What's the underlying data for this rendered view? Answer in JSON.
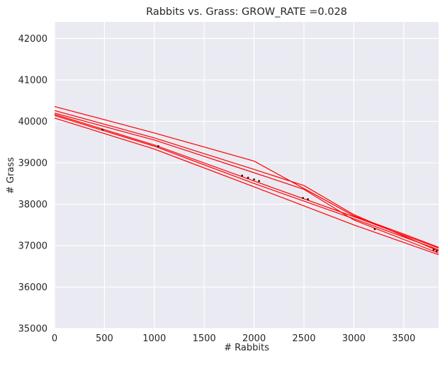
{
  "chart_data": {
    "type": "line",
    "title": "Rabbits vs. Grass: GROW_RATE =0.028",
    "xlabel": "# Rabbits",
    "ylabel": "# Grass",
    "xlim": [
      0,
      3850
    ],
    "ylim": [
      35000,
      42400
    ],
    "xticks": [
      0,
      500,
      1000,
      1500,
      2000,
      2500,
      3000,
      3500
    ],
    "yticks": [
      35000,
      36000,
      37000,
      38000,
      39000,
      40000,
      41000,
      42000
    ],
    "grid": true,
    "background": "#eaeaf2",
    "grid_color": "#ffffff",
    "line_color": "#ff0000",
    "series": [
      {
        "x": [
          0,
          1000,
          2000,
          2900,
          3000,
          3500,
          3850
        ],
        "y": [
          40360,
          39720,
          39040,
          37850,
          37720,
          37280,
          36960
        ]
      },
      {
        "x": [
          0,
          1000,
          2000,
          2500,
          3000,
          3850
        ],
        "y": [
          40260,
          39600,
          38840,
          38450,
          37750,
          36870
        ]
      },
      {
        "x": [
          0,
          1000,
          2000,
          2500,
          3000,
          3850
        ],
        "y": [
          40200,
          39550,
          38760,
          38360,
          37620,
          36820
        ]
      },
      {
        "x": [
          0,
          1000,
          2000,
          3000,
          3850
        ],
        "y": [
          40140,
          39400,
          38500,
          37650,
          36900
        ]
      },
      {
        "x": [
          0,
          1000,
          2000,
          3000,
          3850
        ],
        "y": [
          40080,
          39330,
          38420,
          37500,
          36780
        ]
      },
      {
        "x": [
          0,
          1000,
          2000,
          3000,
          3850
        ],
        "y": [
          40170,
          39430,
          38560,
          37700,
          36940
        ]
      }
    ],
    "points": [
      {
        "x": 480,
        "y": 39800
      },
      {
        "x": 1040,
        "y": 39400
      },
      {
        "x": 1880,
        "y": 38690
      },
      {
        "x": 1940,
        "y": 38640
      },
      {
        "x": 2000,
        "y": 38600
      },
      {
        "x": 2050,
        "y": 38560
      },
      {
        "x": 2490,
        "y": 38150
      },
      {
        "x": 2540,
        "y": 38120
      },
      {
        "x": 3210,
        "y": 37400
      },
      {
        "x": 3800,
        "y": 36900
      },
      {
        "x": 3830,
        "y": 36870
      }
    ]
  }
}
